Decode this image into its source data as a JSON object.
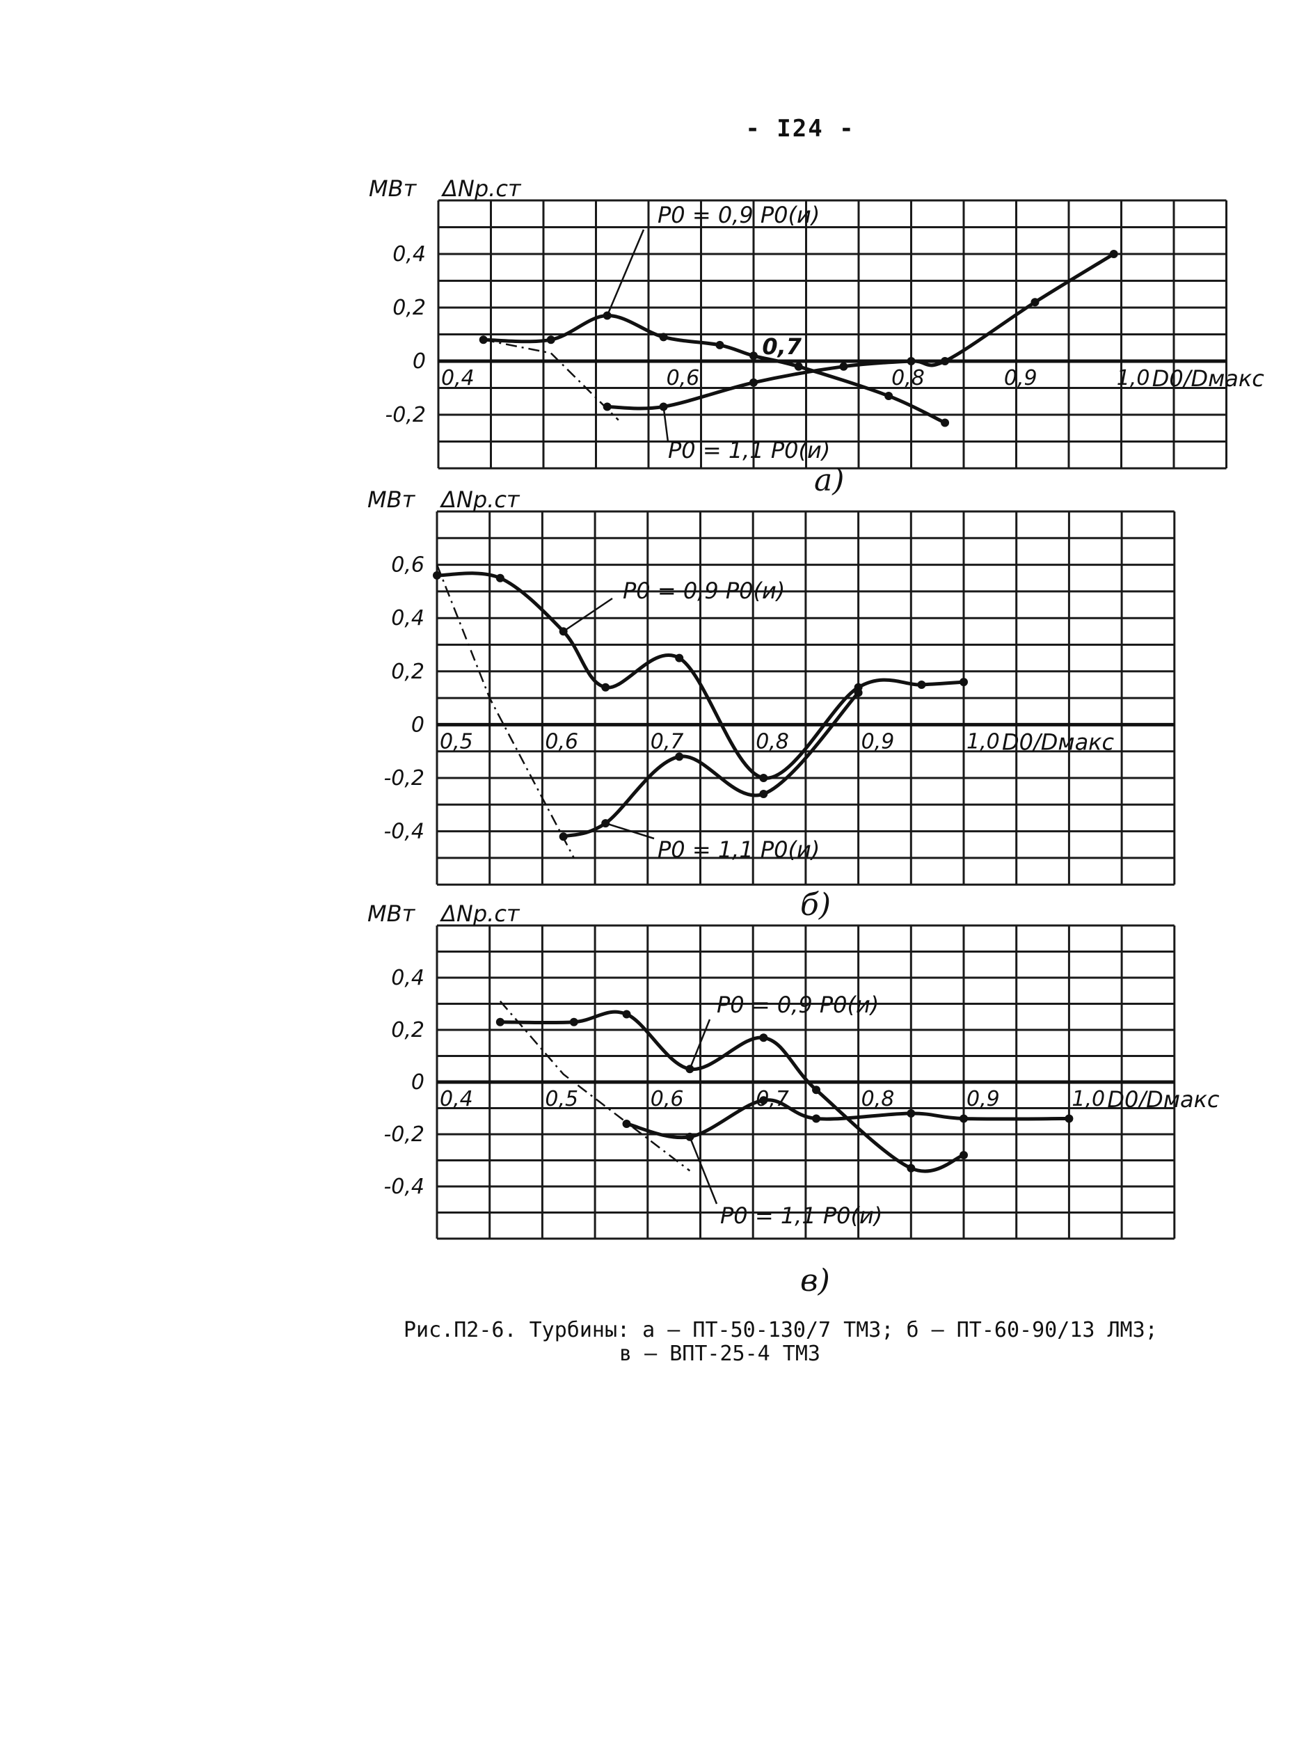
{
  "page_number": "- I24 -",
  "caption": {
    "line1": "Рис.П2-6. Турбины: а – ПТ-50-130/7 ТМЗ; б – ПТ-60-90/13 ЛМЗ;",
    "line2": "в – ВПТ-25-4 ТМЗ"
  },
  "chart_data": [
    {
      "type": "line",
      "panel_label": "а)",
      "y_unit": "МВт",
      "ylabel": "ΔNр.ст",
      "xlabel": "D0/Dмакс",
      "xlim": [
        0.4,
        1.1
      ],
      "ylim": [
        -0.4,
        0.6
      ],
      "x_ticks": [
        "0,4",
        "0,6",
        "0,8",
        "0,9",
        "1,0"
      ],
      "x_tick_values": [
        0.4,
        0.6,
        0.8,
        0.9,
        1.0
      ],
      "y_ticks": [
        "0,4",
        "0,2",
        "0",
        "-0,2"
      ],
      "y_tick_values": [
        0.4,
        0.2,
        0,
        -0.2
      ],
      "annotation": "0,7",
      "series": [
        {
          "name": "P0 = 0,9 P0(и)",
          "points": [
            [
              0.44,
              0.08
            ],
            [
              0.5,
              0.08
            ],
            [
              0.55,
              0.17
            ],
            [
              0.6,
              0.09
            ],
            [
              0.65,
              0.06
            ],
            [
              0.68,
              0.02
            ],
            [
              0.72,
              -0.02
            ],
            [
              0.8,
              -0.13
            ],
            [
              0.85,
              -0.23
            ]
          ]
        },
        {
          "name": "P0 = 1,1 P0(и)",
          "points": [
            [
              0.55,
              -0.17
            ],
            [
              0.6,
              -0.17
            ],
            [
              0.68,
              -0.08
            ],
            [
              0.76,
              -0.02
            ],
            [
              0.82,
              0.0
            ],
            [
              0.85,
              0.0
            ],
            [
              0.93,
              0.22
            ],
            [
              1.0,
              0.4
            ]
          ]
        }
      ],
      "dashed_extrapolation": [
        [
          0.44,
          0.08
        ],
        [
          0.5,
          0.03
        ],
        [
          0.56,
          -0.22
        ]
      ]
    },
    {
      "type": "line",
      "panel_label": "б)",
      "y_unit": "МВт",
      "ylabel": "ΔNр.ст",
      "xlabel": "D0/Dмакс",
      "xlim": [
        0.5,
        1.2
      ],
      "ylim": [
        -0.6,
        0.8
      ],
      "x_ticks": [
        "0,5",
        "0,6",
        "0,7",
        "0,8",
        "0,9",
        "1,0"
      ],
      "x_tick_values": [
        0.5,
        0.6,
        0.7,
        0.8,
        0.9,
        1.0
      ],
      "y_ticks": [
        "0,6",
        "0,4",
        "0,2",
        "0",
        "-0,2",
        "-0,4"
      ],
      "y_tick_values": [
        0.6,
        0.4,
        0.2,
        0,
        -0.2,
        -0.4
      ],
      "series": [
        {
          "name": "P0 = 0,9 P0(и)",
          "points": [
            [
              0.5,
              0.56
            ],
            [
              0.56,
              0.55
            ],
            [
              0.62,
              0.35
            ],
            [
              0.66,
              0.14
            ],
            [
              0.73,
              0.25
            ],
            [
              0.81,
              -0.2
            ],
            [
              0.9,
              0.14
            ],
            [
              0.96,
              0.15
            ],
            [
              1.0,
              0.16
            ]
          ]
        },
        {
          "name": "P0 = 1,1 P0(и)",
          "points": [
            [
              0.62,
              -0.42
            ],
            [
              0.66,
              -0.37
            ],
            [
              0.73,
              -0.12
            ],
            [
              0.81,
              -0.26
            ],
            [
              0.9,
              0.12
            ]
          ]
        }
      ],
      "dashed_extrapolation": [
        [
          0.5,
          0.6
        ],
        [
          0.55,
          0.1
        ],
        [
          0.63,
          -0.5
        ]
      ]
    },
    {
      "type": "line",
      "panel_label": "в)",
      "y_unit": "МВт",
      "ylabel": "ΔNр.ст",
      "xlabel": "D0/Dмакс",
      "xlim": [
        0.4,
        1.1
      ],
      "ylim": [
        -0.6,
        0.6
      ],
      "x_ticks": [
        "0,4",
        "0,5",
        "0,6",
        "0,7",
        "0,8",
        "0,9",
        "1,0"
      ],
      "x_tick_values": [
        0.4,
        0.5,
        0.6,
        0.7,
        0.8,
        0.9,
        1.0
      ],
      "y_ticks": [
        "0,4",
        "0,2",
        "0",
        "-0,2",
        "-0,4"
      ],
      "y_tick_values": [
        0.4,
        0.2,
        0,
        -0.2,
        -0.4
      ],
      "series": [
        {
          "name": "P0 = 0,9 P0(и)",
          "points": [
            [
              0.46,
              0.23
            ],
            [
              0.53,
              0.23
            ],
            [
              0.58,
              0.26
            ],
            [
              0.64,
              0.05
            ],
            [
              0.71,
              0.17
            ],
            [
              0.76,
              -0.03
            ],
            [
              0.85,
              -0.33
            ],
            [
              0.9,
              -0.28
            ]
          ]
        },
        {
          "name": "P0 = 1,1 P0(и)",
          "points": [
            [
              0.58,
              -0.16
            ],
            [
              0.64,
              -0.21
            ],
            [
              0.71,
              -0.07
            ],
            [
              0.76,
              -0.14
            ],
            [
              0.85,
              -0.12
            ],
            [
              0.9,
              -0.14
            ],
            [
              1.0,
              -0.14
            ]
          ]
        }
      ],
      "dashed_extrapolation": [
        [
          0.46,
          0.31
        ],
        [
          0.52,
          0.03
        ],
        [
          0.64,
          -0.34
        ]
      ]
    }
  ]
}
